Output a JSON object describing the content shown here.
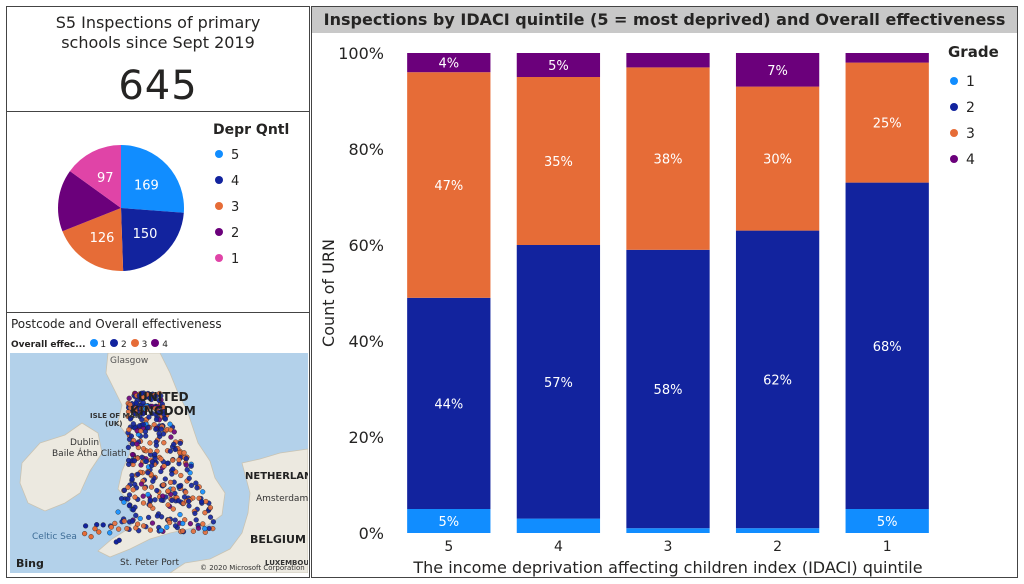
{
  "kpi": {
    "title": "S5 Inspections of primary schools since Sept 2019",
    "value": "645"
  },
  "pie": {
    "legend_title": "Depr Qntl",
    "slices": [
      {
        "label": "5",
        "value": 169,
        "color": "#118DFF"
      },
      {
        "label": "4",
        "value": 150,
        "color": "#12239E"
      },
      {
        "label": "3",
        "value": 126,
        "color": "#E66C37"
      },
      {
        "label": "2",
        "value": 103,
        "color": "#6B007B"
      },
      {
        "label": "1",
        "value": 97,
        "color": "#E044A7"
      }
    ]
  },
  "map": {
    "title": "Postcode and Overall effectiveness",
    "legend_label": "Overall effec...",
    "legend_items": [
      {
        "label": "1",
        "color": "#118DFF"
      },
      {
        "label": "2",
        "color": "#12239E"
      },
      {
        "label": "3",
        "color": "#E66C37"
      },
      {
        "label": "4",
        "color": "#6B007B"
      }
    ],
    "places": {
      "glasgow": "Glasgow",
      "uk1": "UNITED",
      "uk2": "KINGDOM",
      "isle1": "ISLE OF MAN",
      "isle2": "(UK)",
      "dublin1": "Dublin",
      "dublin2": "Baile Átha Cliath",
      "netherlands": "NETHERLANDS",
      "amsterdam": "Amsterdam",
      "belgium": "BELGIUM",
      "celtic": "Celtic Sea",
      "stpeter": "St. Peter Port",
      "lux": "LUXEMBOURG"
    },
    "bing": "Bing",
    "copyright": "© 2020 Microsoft Corporation"
  },
  "chart_data": {
    "type": "bar",
    "stacked": true,
    "title": "Inspections by IDACI quintile (5 = most deprived) and Overall effectiveness",
    "xlabel": "The income deprivation affecting children index (IDACI) quintile",
    "ylabel": "Count of URN",
    "categories": [
      "5",
      "4",
      "3",
      "2",
      "1"
    ],
    "ylim": [
      0,
      100
    ],
    "yticks": [
      "0%",
      "20%",
      "40%",
      "60%",
      "80%",
      "100%"
    ],
    "legend_title": "Grade",
    "legend_position": "right",
    "series": [
      {
        "name": "1",
        "color": "#118DFF",
        "values": [
          5,
          3,
          1,
          1,
          5
        ],
        "labels": [
          "5%",
          "",
          "",
          "",
          "5%"
        ]
      },
      {
        "name": "2",
        "color": "#12239E",
        "values": [
          44,
          57,
          58,
          62,
          68
        ],
        "labels": [
          "44%",
          "57%",
          "58%",
          "62%",
          "68%"
        ]
      },
      {
        "name": "3",
        "color": "#E66C37",
        "values": [
          47,
          35,
          38,
          30,
          25
        ],
        "labels": [
          "47%",
          "35%",
          "38%",
          "30%",
          "25%"
        ]
      },
      {
        "name": "4",
        "color": "#6B007B",
        "values": [
          4,
          5,
          3,
          7,
          2
        ],
        "labels": [
          "4%",
          "5%",
          "",
          "7%",
          ""
        ]
      }
    ]
  }
}
